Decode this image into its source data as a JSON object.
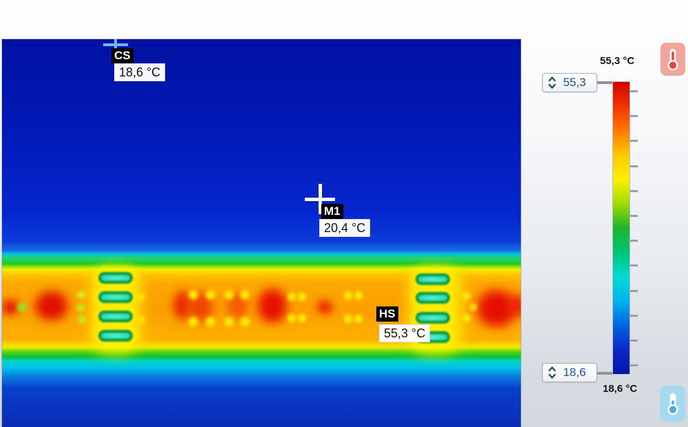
{
  "markers": [
    {
      "id": "CS",
      "label": "CS",
      "value": "18,6 °C",
      "crosshair_color": "#6ab9f5"
    },
    {
      "id": "M1",
      "label": "M1",
      "value": "20,4 °C",
      "crosshair_color": "#ffffff"
    },
    {
      "id": "HS",
      "label": "HS",
      "value": "55,3 °C",
      "crosshair_color": ""
    }
  ],
  "scale": {
    "max_label": "55,3 °C",
    "min_label": "18,6 °C",
    "max_value": "55,3",
    "min_value": "18,6",
    "tick_count": 12,
    "value_text_color": "#1c4f94",
    "gradient": [
      "#d40000",
      "#f23300",
      "#ff7a00",
      "#ffc800",
      "#fdf000",
      "#a0dc00",
      "#1eb42c",
      "#00c278",
      "#00dcd2",
      "#00b4ee",
      "#0064e0",
      "#0a28c8",
      "#0416a8"
    ],
    "hot_icon": "thermometer-hot-icon",
    "cold_icon": "thermometer-cold-icon"
  }
}
